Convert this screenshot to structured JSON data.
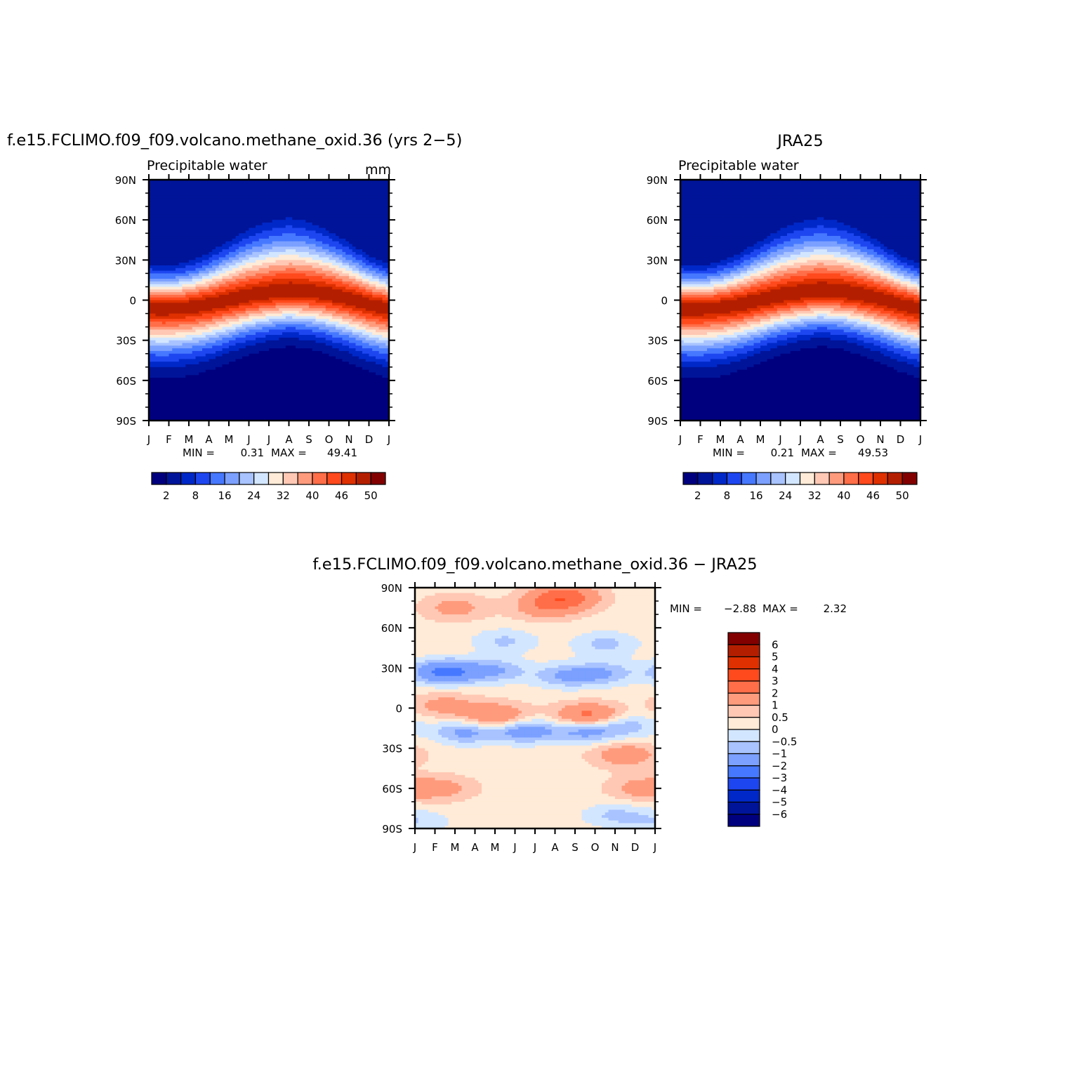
{
  "colors": {
    "full_palette": [
      "#00007f",
      "#001499",
      "#0028c8",
      "#1e46f0",
      "#4678ff",
      "#7ba0ff",
      "#a8c3ff",
      "#d3e6ff",
      "#ffebd7",
      "#ffc8b4",
      "#ff9b7d",
      "#ff6e48",
      "#ff4a1d",
      "#de3000",
      "#b41e00",
      "#820000"
    ],
    "diff_palette": [
      "#001499",
      "#0028c8",
      "#1e46f0",
      "#4678ff",
      "#7ba0ff",
      "#a8c3ff",
      "#d3e6ff",
      "#ffebd7",
      "#ffc8b4",
      "#ff9b7d",
      "#ff6e48",
      "#ff4a1d",
      "#de3000",
      "#b41e00",
      "#820000"
    ]
  },
  "chart_data": [
    {
      "type": "heatmap",
      "title": "f.e15.FCLIMO.f09_f09.volcano.methane_oxid.36 (yrs 2−5)",
      "subtitle": "Precipitable water",
      "units": "mm",
      "min_label": "MIN =",
      "min_value": "0.31",
      "max_label": "MAX =",
      "max_value": "49.41",
      "x_ticklabels": [
        "J",
        "F",
        "M",
        "A",
        "M",
        "J",
        "J",
        "A",
        "S",
        "O",
        "N",
        "D",
        "J"
      ],
      "y_ticklabels": [
        "90N",
        "60N",
        "30N",
        "0",
        "30S",
        "60S",
        "90S"
      ],
      "ylim": [
        -90,
        90
      ],
      "colorbar_orientation": "horizontal",
      "colorbar_labels": [
        "2",
        "8",
        "16",
        "24",
        "32",
        "40",
        "46",
        "50"
      ],
      "zonal_structure": {
        "ec_lat_by_month": [
          -6,
          -6,
          -5,
          -3,
          0,
          3,
          5,
          7,
          6,
          4,
          1,
          -3,
          -6
        ],
        "peak_value": 49.41,
        "nh_polar": 3,
        "sh_polar": 0.5
      }
    },
    {
      "type": "heatmap",
      "title": "JRA25",
      "subtitle": "Precipitable water",
      "min_label": "MIN =",
      "min_value": "0.21",
      "max_label": "MAX =",
      "max_value": "49.53",
      "x_ticklabels": [
        "J",
        "F",
        "M",
        "A",
        "M",
        "J",
        "J",
        "A",
        "S",
        "O",
        "N",
        "D",
        "J"
      ],
      "y_ticklabels": [
        "90N",
        "60N",
        "30N",
        "0",
        "30S",
        "60S",
        "90S"
      ],
      "ylim": [
        -90,
        90
      ],
      "colorbar_orientation": "horizontal",
      "colorbar_labels": [
        "2",
        "8",
        "16",
        "24",
        "32",
        "40",
        "46",
        "50"
      ],
      "zonal_structure": {
        "ec_lat_by_month": [
          -6,
          -6,
          -5,
          -3,
          0,
          3,
          5,
          7,
          6,
          4,
          1,
          -3,
          -6
        ],
        "peak_value": 49.53,
        "nh_polar": 2.5,
        "sh_polar": 0.4
      }
    },
    {
      "type": "heatmap",
      "title": "f.e15.FCLIMO.f09_f09.volcano.methane_oxid.36 − JRA25",
      "min_label": "MIN =",
      "min_value": "−2.88",
      "max_label": "MAX =",
      "max_value": "2.32",
      "x_ticklabels": [
        "J",
        "F",
        "M",
        "A",
        "M",
        "J",
        "J",
        "A",
        "S",
        "O",
        "N",
        "D",
        "J"
      ],
      "y_ticklabels": [
        "90N",
        "60N",
        "30N",
        "0",
        "30S",
        "60S",
        "90S"
      ],
      "ylim": [
        -90,
        90
      ],
      "colorbar_orientation": "vertical",
      "colorbar_labels": [
        "6",
        "5",
        "4",
        "3",
        "2",
        "1",
        "0.5",
        "0",
        "−0.5",
        "−1",
        "−2",
        "−3",
        "−4",
        "−5",
        "−6"
      ],
      "levels": [
        -6,
        -5,
        -4,
        -3,
        -2,
        -1,
        -0.5,
        0,
        0.5,
        1,
        2,
        3,
        4,
        5,
        6
      ],
      "anomalies": [
        {
          "month": 1.5,
          "lat": 27,
          "value": -2.6
        },
        {
          "month": 4,
          "lat": 28,
          "value": -1.3
        },
        {
          "month": 7.5,
          "lat": 24,
          "value": -1.3
        },
        {
          "month": 9.5,
          "lat": 26,
          "value": -1.2
        },
        {
          "month": 2.5,
          "lat": -18,
          "value": -1.5
        },
        {
          "month": 5.5,
          "lat": -17,
          "value": -1.8
        },
        {
          "month": 8.5,
          "lat": -17,
          "value": -1.6
        },
        {
          "month": 10.5,
          "lat": -13,
          "value": -1.1
        },
        {
          "month": 7.5,
          "lat": 83,
          "value": 2.3
        },
        {
          "month": 6.5,
          "lat": 75,
          "value": 1.2
        },
        {
          "month": 2,
          "lat": 75,
          "value": 1
        },
        {
          "month": 4,
          "lat": -6,
          "value": 1.8
        },
        {
          "month": 8.7,
          "lat": -6,
          "value": 2.2
        },
        {
          "month": 1.5,
          "lat": 2,
          "value": 1
        },
        {
          "month": 10.5,
          "lat": -35,
          "value": 1.3
        },
        {
          "month": 1.3,
          "lat": -60,
          "value": 1
        },
        {
          "month": 11.3,
          "lat": -60,
          "value": 1
        },
        {
          "month": 10,
          "lat": -80,
          "value": -0.9
        },
        {
          "month": 0.2,
          "lat": -85,
          "value": -0.7
        },
        {
          "month": 4.5,
          "lat": 50,
          "value": -0.9
        },
        {
          "month": 9.5,
          "lat": 48,
          "value": -1
        }
      ]
    }
  ]
}
